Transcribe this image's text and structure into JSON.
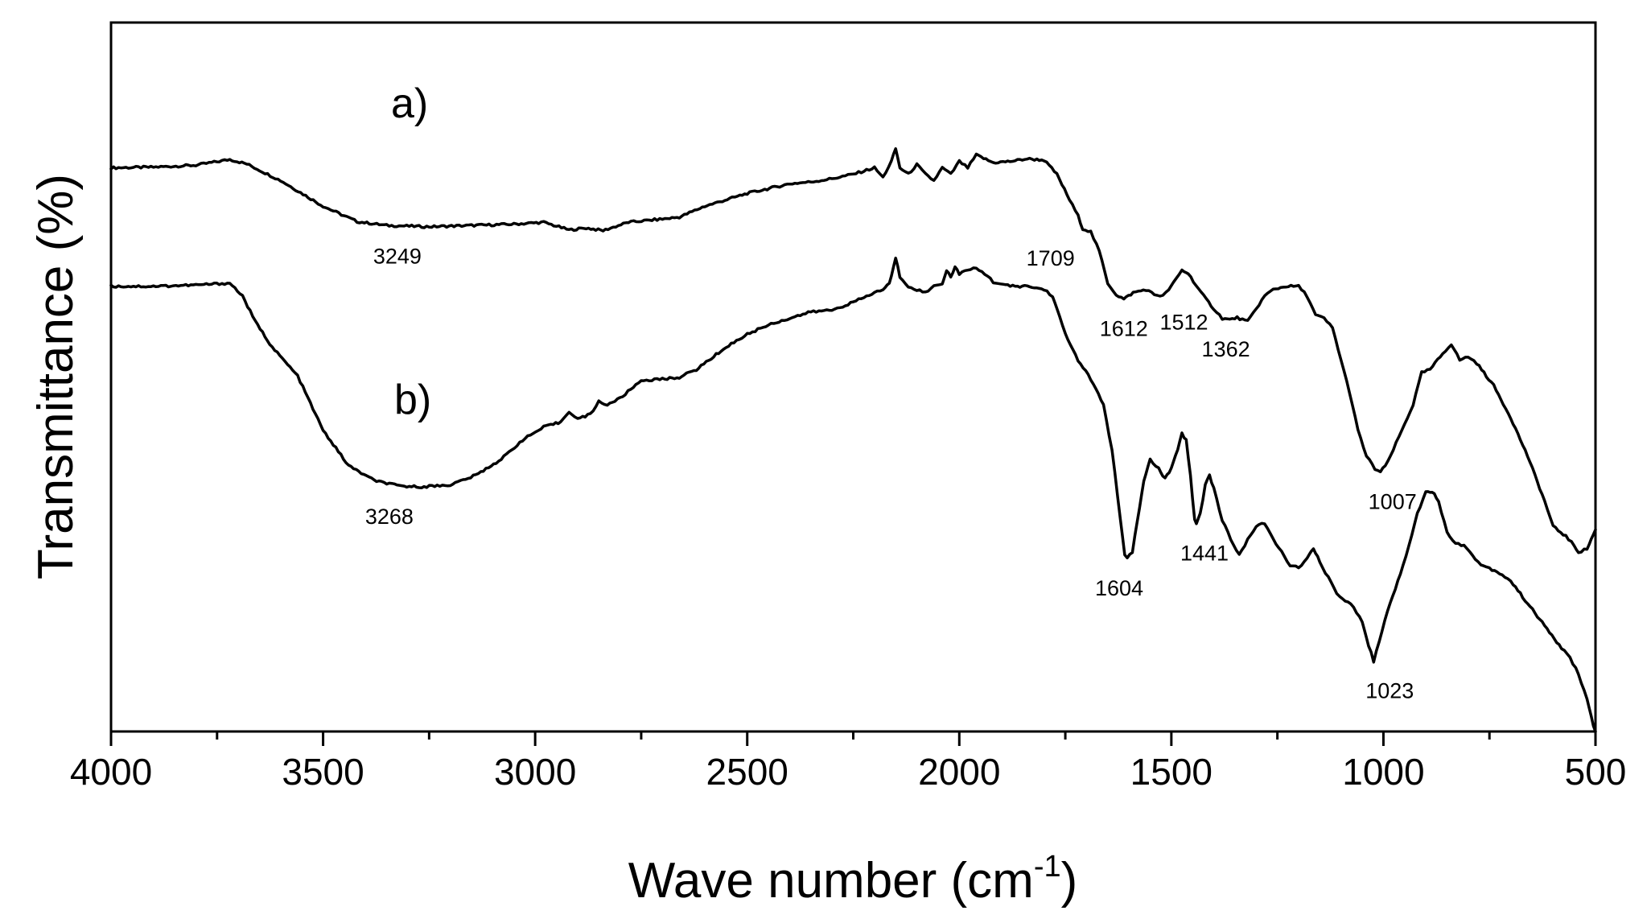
{
  "chart_data": {
    "type": "line",
    "title": "",
    "xlabel": "Wave number (cm",
    "xlabel_sup": "-1",
    "xlabel_close": ")",
    "ylabel": "Transmittance (%)",
    "xlim": [
      4000,
      500
    ],
    "ylim": [
      0,
      100
    ],
    "x_ticks": [
      4000,
      3500,
      3000,
      2500,
      2000,
      1500,
      1000,
      500
    ],
    "x_tick_labels": [
      "4000",
      "3500",
      "3000",
      "2500",
      "2000",
      "1500",
      "1000",
      "500"
    ],
    "y_ticks_shown": false,
    "series": [
      {
        "name": "a)",
        "points": [
          [
            4000,
            88
          ],
          [
            3900,
            88.1
          ],
          [
            3800,
            88.4
          ],
          [
            3720,
            89.3
          ],
          [
            3680,
            88.6
          ],
          [
            3600,
            86
          ],
          [
            3500,
            82
          ],
          [
            3420,
            79.6
          ],
          [
            3350,
            79
          ],
          [
            3250,
            78.8
          ],
          [
            3150,
            79
          ],
          [
            3050,
            79.2
          ],
          [
            2980,
            79.5
          ],
          [
            2920,
            78.3
          ],
          [
            2880,
            78.6
          ],
          [
            2840,
            78.2
          ],
          [
            2780,
            79.5
          ],
          [
            2700,
            80
          ],
          [
            2660,
            80.3
          ],
          [
            2600,
            82
          ],
          [
            2500,
            84
          ],
          [
            2400,
            85.5
          ],
          [
            2350,
            85.8
          ],
          [
            2300,
            86.3
          ],
          [
            2250,
            87
          ],
          [
            2200,
            88
          ],
          [
            2180,
            86.5
          ],
          [
            2160,
            89
          ],
          [
            2150,
            91
          ],
          [
            2140,
            88
          ],
          [
            2120,
            87
          ],
          [
            2100,
            88.5
          ],
          [
            2080,
            87
          ],
          [
            2060,
            86
          ],
          [
            2040,
            88
          ],
          [
            2020,
            87
          ],
          [
            2000,
            89
          ],
          [
            1980,
            88
          ],
          [
            1960,
            90
          ],
          [
            1920,
            88.8
          ],
          [
            1880,
            89
          ],
          [
            1840,
            89.4
          ],
          [
            1800,
            89.2
          ],
          [
            1770,
            87
          ],
          [
            1740,
            83
          ],
          [
            1720,
            80.5
          ],
          [
            1709,
            78.5
          ],
          [
            1690,
            78
          ],
          [
            1670,
            75
          ],
          [
            1650,
            70
          ],
          [
            1630,
            68.2
          ],
          [
            1612,
            67.5
          ],
          [
            1590,
            68.5
          ],
          [
            1560,
            69
          ],
          [
            1540,
            68.2
          ],
          [
            1520,
            68
          ],
          [
            1512,
            68.5
          ],
          [
            1495,
            70
          ],
          [
            1475,
            72
          ],
          [
            1460,
            71.5
          ],
          [
            1430,
            68.5
          ],
          [
            1400,
            66
          ],
          [
            1380,
            64.5
          ],
          [
            1362,
            64.3
          ],
          [
            1345,
            64.6
          ],
          [
            1320,
            64
          ],
          [
            1300,
            66
          ],
          [
            1280,
            68
          ],
          [
            1260,
            69
          ],
          [
            1230,
            69.5
          ],
          [
            1200,
            69.5
          ],
          [
            1180,
            68
          ],
          [
            1160,
            65
          ],
          [
            1140,
            64.5
          ],
          [
            1120,
            63
          ],
          [
            1100,
            58
          ],
          [
            1080,
            53
          ],
          [
            1060,
            47
          ],
          [
            1040,
            43
          ],
          [
            1020,
            41
          ],
          [
            1007,
            40.5
          ],
          [
            990,
            42
          ],
          [
            970,
            45
          ],
          [
            950,
            48
          ],
          [
            930,
            51
          ],
          [
            910,
            56
          ],
          [
            890,
            56.5
          ],
          [
            860,
            59
          ],
          [
            840,
            60.5
          ],
          [
            820,
            58
          ],
          [
            800,
            58.5
          ],
          [
            780,
            57.5
          ],
          [
            740,
            54
          ],
          [
            700,
            49
          ],
          [
            660,
            43
          ],
          [
            620,
            36
          ],
          [
            600,
            32
          ],
          [
            570,
            30.5
          ],
          [
            550,
            29
          ],
          [
            540,
            28
          ],
          [
            520,
            28.5
          ],
          [
            510,
            30
          ],
          [
            500,
            31.5
          ]
        ]
      },
      {
        "name": "b)",
        "points": [
          [
            4000,
            69.5
          ],
          [
            3900,
            69.5
          ],
          [
            3800,
            69.7
          ],
          [
            3720,
            70
          ],
          [
            3690,
            68
          ],
          [
            3660,
            64
          ],
          [
            3620,
            60
          ],
          [
            3560,
            55.5
          ],
          [
            3500,
            47
          ],
          [
            3440,
            41.5
          ],
          [
            3380,
            39.2
          ],
          [
            3320,
            38.3
          ],
          [
            3268,
            38.2
          ],
          [
            3200,
            38.5
          ],
          [
            3140,
            40
          ],
          [
            3080,
            42.5
          ],
          [
            3030,
            45.5
          ],
          [
            2980,
            47.5
          ],
          [
            2940,
            48.3
          ],
          [
            2920,
            50
          ],
          [
            2900,
            48.8
          ],
          [
            2870,
            49.5
          ],
          [
            2850,
            51.5
          ],
          [
            2830,
            51
          ],
          [
            2800,
            52
          ],
          [
            2750,
            54.8
          ],
          [
            2700,
            55
          ],
          [
            2660,
            55.3
          ],
          [
            2620,
            56.5
          ],
          [
            2550,
            60
          ],
          [
            2500,
            62
          ],
          [
            2450,
            63.5
          ],
          [
            2400,
            64.5
          ],
          [
            2350,
            65.5
          ],
          [
            2300,
            65.8
          ],
          [
            2250,
            67
          ],
          [
            2200,
            68.5
          ],
          [
            2180,
            69
          ],
          [
            2165,
            70
          ],
          [
            2160,
            71
          ],
          [
            2150,
            74
          ],
          [
            2140,
            71
          ],
          [
            2120,
            69.5
          ],
          [
            2100,
            69
          ],
          [
            2080,
            68.5
          ],
          [
            2060,
            69.5
          ],
          [
            2040,
            70
          ],
          [
            2030,
            72
          ],
          [
            2020,
            71
          ],
          [
            2010,
            72.5
          ],
          [
            2000,
            71.5
          ],
          [
            1980,
            72
          ],
          [
            1960,
            72.3
          ],
          [
            1940,
            71.5
          ],
          [
            1920,
            70.2
          ],
          [
            1880,
            69.5
          ],
          [
            1840,
            69.5
          ],
          [
            1800,
            69
          ],
          [
            1780,
            68
          ],
          [
            1770,
            66
          ],
          [
            1750,
            62
          ],
          [
            1720,
            58
          ],
          [
            1690,
            55
          ],
          [
            1660,
            51
          ],
          [
            1640,
            44
          ],
          [
            1620,
            33
          ],
          [
            1610,
            27.5
          ],
          [
            1604,
            27
          ],
          [
            1592,
            28
          ],
          [
            1580,
            33
          ],
          [
            1565,
            39
          ],
          [
            1550,
            42.5
          ],
          [
            1530,
            41
          ],
          [
            1515,
            39.5
          ],
          [
            1500,
            41
          ],
          [
            1490,
            43
          ],
          [
            1475,
            46.5
          ],
          [
            1465,
            45.5
          ],
          [
            1455,
            40
          ],
          [
            1445,
            33
          ],
          [
            1441,
            32.5
          ],
          [
            1432,
            34
          ],
          [
            1420,
            38.5
          ],
          [
            1410,
            40
          ],
          [
            1400,
            38
          ],
          [
            1380,
            33
          ],
          [
            1360,
            30
          ],
          [
            1340,
            27.5
          ],
          [
            1320,
            30
          ],
          [
            1300,
            32
          ],
          [
            1280,
            32.5
          ],
          [
            1260,
            30
          ],
          [
            1240,
            28
          ],
          [
            1220,
            26
          ],
          [
            1200,
            25.5
          ],
          [
            1180,
            27
          ],
          [
            1165,
            28.5
          ],
          [
            1150,
            26.5
          ],
          [
            1130,
            24
          ],
          [
            1110,
            21.5
          ],
          [
            1090,
            20.5
          ],
          [
            1070,
            19.5
          ],
          [
            1050,
            17
          ],
          [
            1035,
            13.5
          ],
          [
            1023,
            11
          ],
          [
            1010,
            14
          ],
          [
            990,
            19
          ],
          [
            960,
            24.5
          ],
          [
            940,
            29
          ],
          [
            920,
            34
          ],
          [
            900,
            37.5
          ],
          [
            885,
            37.5
          ],
          [
            870,
            36
          ],
          [
            850,
            31
          ],
          [
            830,
            29.5
          ],
          [
            810,
            29
          ],
          [
            790,
            27.5
          ],
          [
            770,
            26
          ],
          [
            750,
            25.5
          ],
          [
            720,
            24.5
          ],
          [
            700,
            23.5
          ],
          [
            660,
            20
          ],
          [
            620,
            16.5
          ],
          [
            580,
            13
          ],
          [
            560,
            11.5
          ],
          [
            540,
            9
          ],
          [
            520,
            5
          ],
          [
            505,
            1
          ],
          [
            500,
            0
          ]
        ]
      }
    ],
    "series_labels": [
      "a)",
      "b)"
    ],
    "annotations": [
      {
        "text": "3249",
        "series": 0,
        "x": 3249
      },
      {
        "text": "1709",
        "series": 0,
        "x": 1709
      },
      {
        "text": "1612",
        "series": 0,
        "x": 1612
      },
      {
        "text": "1512",
        "series": 0,
        "x": 1512
      },
      {
        "text": "1362",
        "series": 0,
        "x": 1362
      },
      {
        "text": "1007",
        "series": 0,
        "x": 1007
      },
      {
        "text": "3268",
        "series": 1,
        "x": 3268
      },
      {
        "text": "1604",
        "series": 1,
        "x": 1604
      },
      {
        "text": "1441",
        "series": 1,
        "x": 1441
      },
      {
        "text": "1023",
        "series": 1,
        "x": 1023
      }
    ],
    "grid": false,
    "legend": "none"
  }
}
